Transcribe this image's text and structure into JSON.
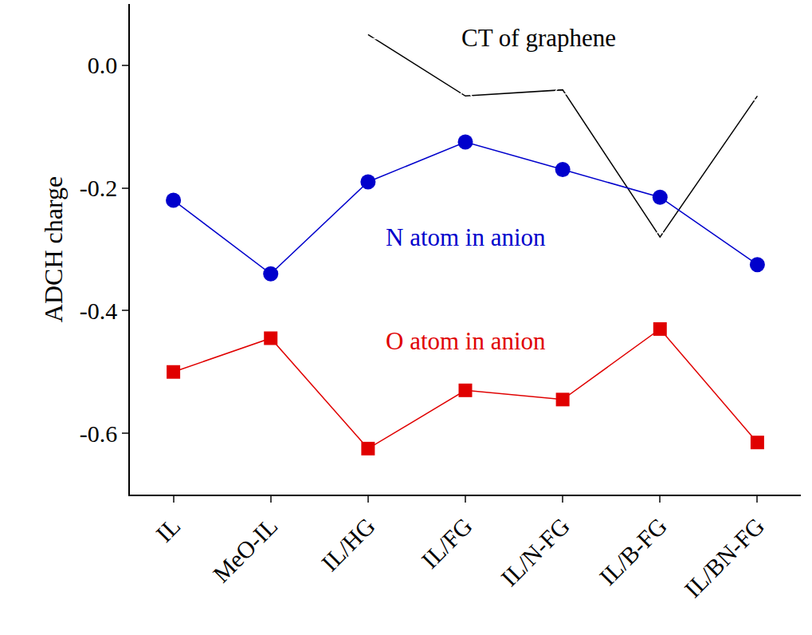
{
  "chart_data": {
    "type": "line",
    "y_label": "ADCH charge",
    "categories": [
      "IL",
      "MeO-IL",
      "IL/HG",
      "IL/FG",
      "IL/N-FG",
      "IL/B-FG",
      "IL/BN-FG"
    ],
    "series": [
      {
        "name": "CT of graphene",
        "color": "#000000",
        "marker": "triangle-open",
        "line_style": "solid",
        "values": [
          null,
          null,
          0.05,
          -0.05,
          -0.04,
          -0.28,
          -0.05
        ]
      },
      {
        "name": "N atom in anion",
        "color": "#0000cc",
        "marker": "circle",
        "line_style": "solid",
        "values": [
          -0.22,
          -0.34,
          -0.19,
          -0.125,
          -0.17,
          -0.215,
          -0.325
        ]
      },
      {
        "name": "O atom in anion",
        "color": "#e00000",
        "marker": "square",
        "line_style": "solid",
        "values": [
          -0.5,
          -0.445,
          -0.625,
          -0.53,
          -0.545,
          -0.43,
          -0.615
        ]
      }
    ],
    "ylim": [
      -0.7,
      0.1
    ],
    "yticks": [
      {
        "value": 0,
        "label": "0.0"
      },
      -0.2,
      -0.4,
      -0.6
    ],
    "grid": false
  }
}
